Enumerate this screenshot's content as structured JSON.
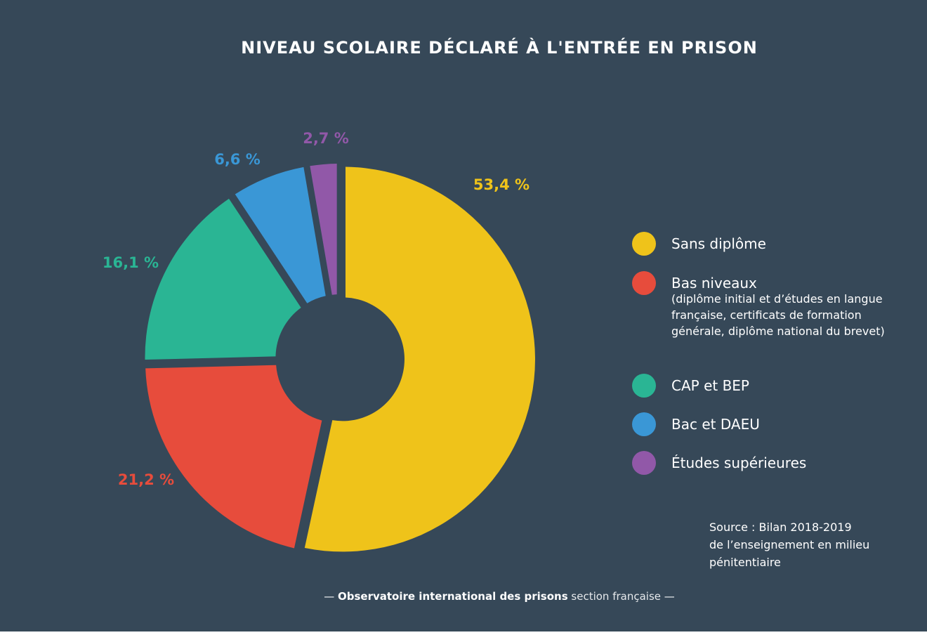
{
  "title": "NIVEAU SCOLAIRE DÉCLARÉ À L'ENTRÉE EN PRISON",
  "chart_data": {
    "type": "pie",
    "title": "NIVEAU SCOLAIRE DÉCLARÉ À L'ENTRÉE EN PRISON",
    "slices": [
      {
        "name": "Sans diplôme",
        "value": 53.4,
        "label": "53,4 %",
        "color": "#efc31a"
      },
      {
        "name": "Bas niveaux",
        "value": 21.2,
        "label": "21,2 %",
        "color": "#e74c3c"
      },
      {
        "name": "CAP et BEP",
        "value": 16.1,
        "label": "16,1 %",
        "color": "#2ab594"
      },
      {
        "name": "Bac et DAEU",
        "value": 6.6,
        "label": "6,6 %",
        "color": "#3a97d6"
      },
      {
        "name": "Études supérieures",
        "value": 2.7,
        "label": "2,7 %",
        "color": "#9158a8"
      }
    ],
    "legend_position": "right"
  },
  "legend": [
    {
      "label": "Sans diplôme",
      "description": ""
    },
    {
      "label": "Bas niveaux",
      "description": "(diplôme initial et d’études en langue française, certificats de formation générale, diplôme national du brevet)"
    },
    {
      "label": "CAP et BEP",
      "description": ""
    },
    {
      "label": "Bac et DAEU",
      "description": ""
    },
    {
      "label": "Études supérieures",
      "description": ""
    }
  ],
  "source": {
    "line1": "Source : Bilan 2018-2019",
    "line2": "de l’enseignement en milieu",
    "line3": "pénitentiaire"
  },
  "footer": {
    "dash_left": "—",
    "org": "Observatoire international des prisons",
    "section": "section française",
    "dash_right": "—"
  },
  "colors": {
    "background": "#364858",
    "text": "#ffffff"
  }
}
